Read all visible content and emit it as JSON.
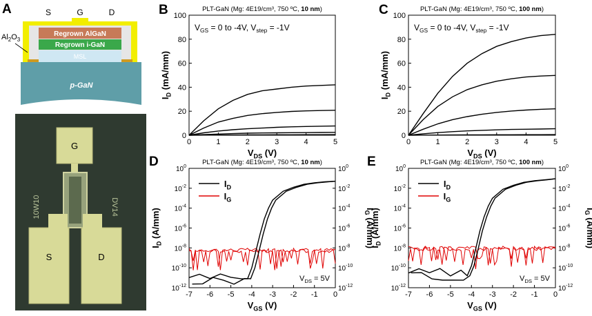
{
  "panel_a": {
    "letter": "A",
    "contacts": [
      "S",
      "G",
      "D"
    ],
    "oxide": "Al2O3",
    "layers": {
      "algan": "Regrown AlGaN",
      "igan": "Regrown i-GaN",
      "msl": "MSL",
      "pgan": "p-GaN"
    },
    "micro": {
      "pads": [
        "G",
        "S",
        "D"
      ],
      "labels": [
        "10W10",
        "DV14"
      ]
    },
    "colors": {
      "metal": "#f2ee00",
      "algan": "#c77a58",
      "igan": "#3aa84a",
      "msl": "#cfe7f3",
      "pgan": "#5f9ea8",
      "micro_bg": "#2f3a30"
    }
  },
  "chart_data": [
    {
      "id": "B",
      "type": "line",
      "title": "PLT-GaN (Mg: 4E19/cm³, 750 ºC, 10 nm)",
      "title_main": "PLT-GaN (Mg: 4E19/cm³, 750 ºC, ",
      "title_bold": "10 nm",
      "annotation": "VGS = 0 to -4V, Vstep = -1V",
      "xlabel": "VDS (V)",
      "ylabel": "ID (mA/mm)",
      "xlim": [
        0,
        5
      ],
      "ylim": [
        0,
        100
      ],
      "xticks": [
        0,
        1,
        2,
        3,
        4,
        5
      ],
      "yticks": [
        0,
        20,
        40,
        60,
        80,
        100
      ],
      "x": [
        0,
        0.5,
        1,
        1.5,
        2,
        2.5,
        3,
        3.5,
        4,
        4.5,
        5
      ],
      "series": [
        {
          "name": "VGS = 0 V",
          "values": [
            0,
            12,
            22,
            29,
            34,
            37,
            38.5,
            40,
            41,
            41.5,
            42
          ]
        },
        {
          "name": "VGS = -1 V",
          "values": [
            0,
            6,
            11,
            14,
            16.5,
            18,
            19,
            19.8,
            20.3,
            20.6,
            20.8
          ]
        },
        {
          "name": "VGS = -2 V",
          "values": [
            0,
            2,
            3.5,
            4.6,
            5.4,
            6,
            6.6,
            7,
            7.3,
            7.5,
            7.7
          ]
        },
        {
          "name": "VGS = -3 V",
          "values": [
            0,
            0.5,
            1,
            1.4,
            1.7,
            1.9,
            2,
            2.1,
            2.2,
            2.3,
            2.4
          ]
        },
        {
          "name": "VGS = -4 V",
          "values": [
            0,
            0.1,
            0.2,
            0.25,
            0.3,
            0.35,
            0.4,
            0.4,
            0.45,
            0.45,
            0.5
          ]
        }
      ]
    },
    {
      "id": "C",
      "type": "line",
      "title": "PLT-GaN (Mg: 4E19/cm³, 750 ºC, 100 nm)",
      "title_main": "PLT-GaN (Mg: 4E19/cm³, 750 ºC, ",
      "title_bold": "100 nm",
      "annotation": "VGS = 0 to -4V, Vstep = -1V",
      "xlabel": "VDS (V)",
      "ylabel": "ID (mA/mm)",
      "xlim": [
        0,
        5
      ],
      "ylim": [
        0,
        100
      ],
      "xticks": [
        0,
        1,
        2,
        3,
        4,
        5
      ],
      "yticks": [
        0,
        20,
        40,
        60,
        80,
        100
      ],
      "x": [
        0,
        0.5,
        1,
        1.5,
        2,
        2.5,
        3,
        3.5,
        4,
        4.5,
        5
      ],
      "series": [
        {
          "name": "VGS = 0 V",
          "values": [
            0,
            18,
            35,
            49,
            60,
            68,
            74,
            78,
            81,
            83,
            84
          ]
        },
        {
          "name": "VGS = -1 V",
          "values": [
            0,
            13,
            24,
            32,
            38,
            42,
            45,
            47,
            48.5,
            49.3,
            49.8
          ]
        },
        {
          "name": "VGS = -2 V",
          "values": [
            0,
            5,
            9.5,
            13,
            15.5,
            17.5,
            19,
            20.2,
            21,
            21.6,
            22
          ]
        },
        {
          "name": "VGS = -3 V",
          "values": [
            0,
            1.2,
            2.2,
            3,
            3.6,
            4.1,
            4.5,
            4.8,
            5,
            5.2,
            5.4
          ]
        },
        {
          "name": "VGS = -4 V",
          "values": [
            0,
            0.1,
            0.2,
            0.25,
            0.3,
            0.35,
            0.4,
            0.4,
            0.45,
            0.45,
            0.5
          ]
        }
      ]
    },
    {
      "id": "D",
      "type": "line",
      "scale": "log",
      "title": "PLT-GaN (Mg: 4E19/cm³, 750 ºC, 10 nm)",
      "title_main": "PLT-GaN (Mg: 4E19/cm³, 750 ºC, ",
      "title_bold": "10 nm",
      "annotation": "VDS = 5V",
      "xlabel": "VGS (V)",
      "ylabel": "ID (A/mm)",
      "ylabel_right": "IG (A/mm)",
      "xlim": [
        -7,
        0
      ],
      "ylim_exp": [
        -12,
        0
      ],
      "xticks": [
        -7,
        -6,
        -5,
        -4,
        -3,
        -2,
        -1,
        0
      ],
      "ytick_exponents": [
        -12,
        -10,
        -8,
        -6,
        -4,
        -2,
        0
      ],
      "legend": [
        "ID",
        "IG"
      ],
      "colors": {
        "ID": "#000000",
        "IG": "#e00000"
      },
      "id_points": [
        {
          "x": -7,
          "e": -10.9
        },
        {
          "x": -6.5,
          "e": -11.0
        },
        {
          "x": -6,
          "e": -11.1
        },
        {
          "x": -5.5,
          "e": -10.9
        },
        {
          "x": -5,
          "e": -11.0
        },
        {
          "x": -4.5,
          "e": -11.0
        },
        {
          "x": -4.2,
          "e": -11.1
        },
        {
          "x": -4,
          "e": -10.0
        },
        {
          "x": -3.8,
          "e": -8.3
        },
        {
          "x": -3.6,
          "e": -6.6
        },
        {
          "x": -3.4,
          "e": -5.1
        },
        {
          "x": -3.2,
          "e": -4.0
        },
        {
          "x": -3,
          "e": -3.2
        },
        {
          "x": -2.5,
          "e": -2.3
        },
        {
          "x": -2,
          "e": -1.9
        },
        {
          "x": -1.5,
          "e": -1.6
        },
        {
          "x": -1,
          "e": -1.45
        },
        {
          "x": -0.5,
          "e": -1.35
        },
        {
          "x": 0,
          "e": -1.3
        }
      ],
      "id_shift": 0.15,
      "ig_level_exp": -8.2
    },
    {
      "id": "E",
      "type": "line",
      "scale": "log",
      "title": "PLT-GaN (Mg: 4E19/cm³, 750 ºC, 100 nm)",
      "title_main": "PLT-GaN (Mg: 4E19/cm³, 750 ºC, ",
      "title_bold": "100 nm",
      "annotation": "VDS = 5V",
      "xlabel": "VGS (V)",
      "ylabel": "ID (A/mm)",
      "ylabel_right": "IG (A/mm)",
      "xlim": [
        -7,
        0
      ],
      "ylim_exp": [
        -12,
        0
      ],
      "xticks": [
        -7,
        -6,
        -5,
        -4,
        -3,
        -2,
        -1,
        0
      ],
      "ytick_exponents": [
        -12,
        -10,
        -8,
        -6,
        -4,
        -2,
        0
      ],
      "legend": [
        "ID",
        "IG"
      ],
      "colors": {
        "ID": "#000000",
        "IG": "#e00000"
      },
      "id_points": [
        {
          "x": -7,
          "e": -10.4
        },
        {
          "x": -6.5,
          "e": -10.5
        },
        {
          "x": -6,
          "e": -10.6
        },
        {
          "x": -5.5,
          "e": -10.5
        },
        {
          "x": -5,
          "e": -10.6
        },
        {
          "x": -4.5,
          "e": -10.6
        },
        {
          "x": -4.2,
          "e": -10.8
        },
        {
          "x": -4,
          "e": -9.8
        },
        {
          "x": -3.8,
          "e": -8.1
        },
        {
          "x": -3.6,
          "e": -6.3
        },
        {
          "x": -3.4,
          "e": -4.9
        },
        {
          "x": -3.2,
          "e": -3.8
        },
        {
          "x": -3,
          "e": -3.0
        },
        {
          "x": -2.5,
          "e": -2.1
        },
        {
          "x": -2,
          "e": -1.7
        },
        {
          "x": -1.5,
          "e": -1.4
        },
        {
          "x": -1,
          "e": -1.25
        },
        {
          "x": -0.5,
          "e": -1.15
        },
        {
          "x": 0,
          "e": -1.05
        }
      ],
      "id_shift": 0.12,
      "ig_level_exp": -8.0
    }
  ]
}
